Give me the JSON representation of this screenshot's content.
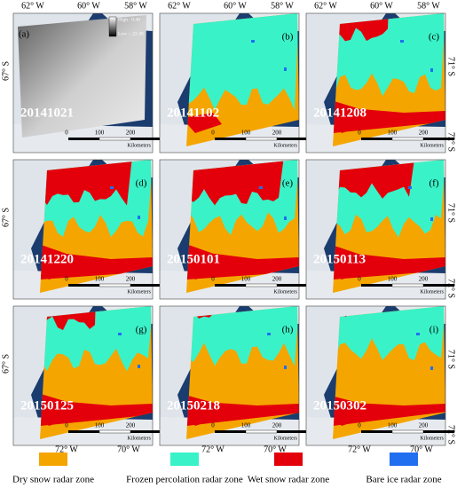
{
  "top_axis_labels": [
    "62° W",
    "60° W",
    "58° W"
  ],
  "bottom_axis_labels": [
    "72° W",
    "70° W"
  ],
  "left_axis_label": "67° S",
  "right_axis_labels": [
    "71° S",
    "72° S"
  ],
  "scale_bar": {
    "ticks": [
      "0",
      "100",
      "200"
    ],
    "unit": "Kilometers"
  },
  "intensity_legend": {
    "high": "High : 0.40",
    "low": "Low : -22.40"
  },
  "panels": [
    {
      "label": "(a)",
      "date": "20141021"
    },
    {
      "label": "(b)",
      "date": "20141102"
    },
    {
      "label": "(c)",
      "date": "20141208"
    },
    {
      "label": "(d)",
      "date": "20141220"
    },
    {
      "label": "(e)",
      "date": "20150101"
    },
    {
      "label": "(f)",
      "date": "20150113"
    },
    {
      "label": "(g)",
      "date": "20150125"
    },
    {
      "label": "(h)",
      "date": "20150218"
    },
    {
      "label": "(i)",
      "date": "20150302"
    }
  ],
  "legend": [
    {
      "name": "Dry snow radar zone",
      "color": "#f5a500"
    },
    {
      "name": "Frozen percolation radar zone",
      "color": "#3af2c8"
    },
    {
      "name": "Wet snow radar zone",
      "color": "#e3000b"
    },
    {
      "name": "Bare ice radar zone",
      "color": "#1f6ff0"
    }
  ]
}
